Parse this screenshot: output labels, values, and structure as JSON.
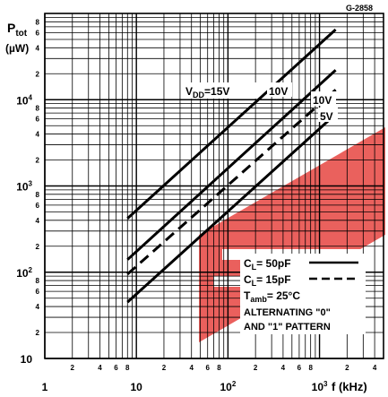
{
  "figure_code": "G-2858",
  "chart_data": {
    "type": "line",
    "ylabel_main": "P",
    "ylabel_sub": "tot",
    "ylabel_unit": "(µW)",
    "xlabel": "f (kHz)",
    "x_scale": "log",
    "y_scale": "log",
    "xlim": [
      1,
      5000
    ],
    "ylim": [
      10,
      100000
    ],
    "x_major_ticks": [
      {
        "value": 1,
        "label": "1"
      },
      {
        "value": 10,
        "label": "10"
      },
      {
        "value": 100,
        "label": "10²"
      },
      {
        "value": 1000,
        "label": "10³"
      }
    ],
    "x_minor_labels": [
      {
        "value": 2,
        "label": "2"
      },
      {
        "value": 4,
        "label": "4"
      },
      {
        "value": 6,
        "label": "6"
      },
      {
        "value": 8,
        "label": "8"
      },
      {
        "value": 20,
        "label": "2"
      },
      {
        "value": 40,
        "label": "4"
      },
      {
        "value": 60,
        "label": "6"
      },
      {
        "value": 80,
        "label": "8"
      },
      {
        "value": 200,
        "label": "2"
      },
      {
        "value": 400,
        "label": "4"
      },
      {
        "value": 600,
        "label": "6"
      },
      {
        "value": 800,
        "label": "8"
      },
      {
        "value": 2000,
        "label": "2"
      },
      {
        "value": 4000,
        "label": "4"
      }
    ],
    "y_major_ticks": [
      {
        "value": 10,
        "label": "10"
      },
      {
        "value": 100,
        "label": "10²"
      },
      {
        "value": 1000,
        "label": "10³"
      },
      {
        "value": 10000,
        "label": "10⁴"
      }
    ],
    "y_minor_labels": [
      {
        "value": 20,
        "label": "2"
      },
      {
        "value": 40,
        "label": "4"
      },
      {
        "value": 60,
        "label": "6"
      },
      {
        "value": 80,
        "label": "8"
      },
      {
        "value": 200,
        "label": "2"
      },
      {
        "value": 400,
        "label": "4"
      },
      {
        "value": 600,
        "label": "6"
      },
      {
        "value": 800,
        "label": "8"
      },
      {
        "value": 2000,
        "label": "2"
      },
      {
        "value": 4000,
        "label": "4"
      },
      {
        "value": 6000,
        "label": "6"
      },
      {
        "value": 8000,
        "label": "8"
      },
      {
        "value": 20000,
        "label": "2"
      },
      {
        "value": 40000,
        "label": "4"
      },
      {
        "value": 60000,
        "label": "6"
      },
      {
        "value": 80000,
        "label": "8"
      }
    ],
    "series": [
      {
        "style": "solid",
        "x": [
          8,
          1500
        ],
        "y": [
          420,
          65000
        ]
      },
      {
        "style": "solid",
        "x": [
          8,
          1500
        ],
        "y": [
          140,
          22000
        ]
      },
      {
        "style": "dashed",
        "x": [
          8,
          1500
        ],
        "y": [
          95,
          13000
        ]
      },
      {
        "style": "solid",
        "x": [
          8,
          1500
        ],
        "y": [
          45,
          6800
        ]
      }
    ],
    "annotations": {
      "vdd_prefix": "V",
      "vdd_sub": "DD",
      "vdd_value": "=15V",
      "label_10v_a": "10V",
      "label_10v_b": "10V",
      "label_5v": "5V"
    },
    "legend": {
      "cl_50_prefix": "C",
      "cl_50_sub": "L",
      "cl_50_value": "= 50pF",
      "cl_15_prefix": "C",
      "cl_15_sub": "L",
      "cl_15_value": "= 15pF",
      "tamb_prefix": "T",
      "tamb_sub": "amb",
      "tamb_value": "= 25°C",
      "line1": "ALTERNATING \"0\"",
      "line2": "AND \"1\" PATTERN"
    },
    "watermark_color": "#e53935"
  }
}
